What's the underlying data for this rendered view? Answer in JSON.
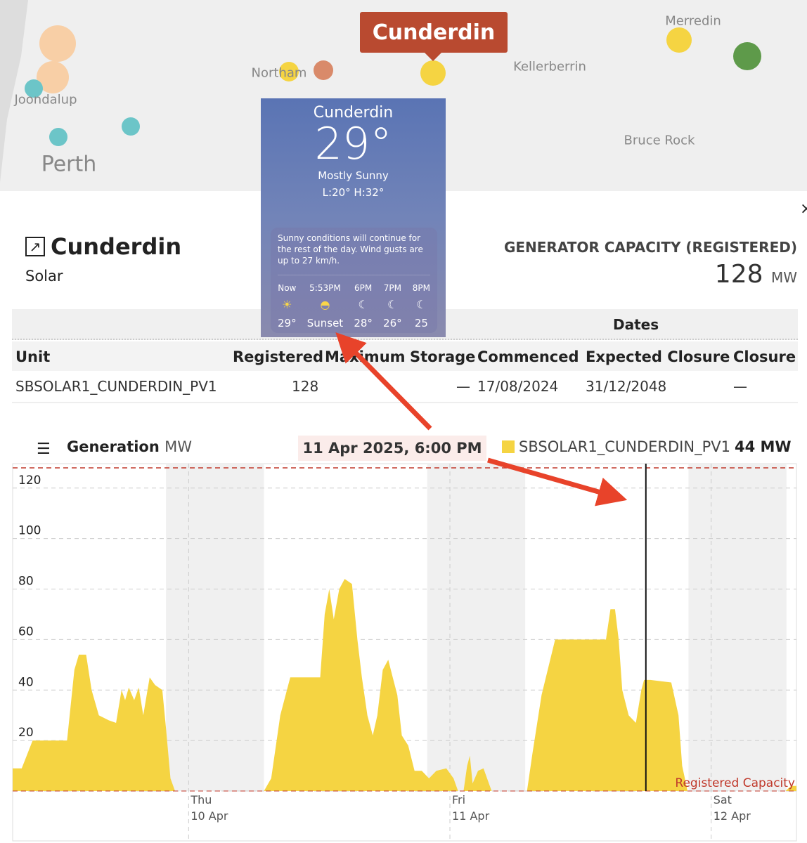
{
  "map": {
    "tooltip": "Cunderdin",
    "places": [
      {
        "name": "Merredin"
      },
      {
        "name": "Northam"
      },
      {
        "name": "Kellerberrin"
      },
      {
        "name": "Joondalup"
      },
      {
        "name": "Perth"
      },
      {
        "name": "Bruce Rock"
      }
    ],
    "marker_colors": {
      "solar": "#f5d442",
      "wind": "#5e9a4a",
      "gas": "#d98a6a",
      "battery": "#6cc5c8",
      "coal": "#f8cfa6"
    }
  },
  "weather": {
    "city": "Cunderdin",
    "temp": "29°",
    "condition": "Mostly Sunny",
    "range": "L:20° H:32°",
    "summary": "Sunny conditions will continue for the rest of the day. Wind gusts are up to 27 km/h.",
    "hours": [
      {
        "time": "Now",
        "icon": "sun-icon",
        "temp": "29°"
      },
      {
        "time": "5:53PM",
        "icon": "sunset-icon",
        "temp": "Sunset"
      },
      {
        "time": "6PM",
        "icon": "moon-stars-icon",
        "temp": "28°"
      },
      {
        "time": "7PM",
        "icon": "moon-stars-icon",
        "temp": "26°"
      },
      {
        "time": "8PM",
        "icon": "moon-stars-icon",
        "temp": "25"
      }
    ]
  },
  "facility": {
    "name": "Cunderdin",
    "fuel": "Solar",
    "capacity_label": "GENERATOR CAPACITY (REGISTERED)",
    "capacity_value": "128",
    "capacity_unit": "MW",
    "close": "×"
  },
  "table": {
    "group_header": "Dates",
    "columns": [
      "Unit",
      "Registered",
      "Maximum",
      "Storage",
      "Commenced",
      "Expected Closure",
      "Closure"
    ],
    "rows": [
      [
        "SBSOLAR1_CUNDERDIN_PV1",
        "128",
        "",
        "—",
        "17/08/2024",
        "31/12/2048",
        "—"
      ]
    ]
  },
  "chart_header": {
    "menu_icon": "hamburger-icon",
    "title": "Generation",
    "unit": "MW",
    "hover_date": "11 Apr 2025, 6:00 PM",
    "series_label": "SBSOLAR1_CUNDERDIN_PV1",
    "series_value": "44 MW"
  },
  "chart_data": {
    "type": "area",
    "ylim": [
      0,
      128
    ],
    "yticks": [
      "0",
      "20",
      "40",
      "60",
      "80",
      "100",
      "120"
    ],
    "xlim": [
      "2025-04-09 07:50",
      "2025-04-12 07:50"
    ],
    "xticks": [
      {
        "day": "Thu",
        "date": "10 Apr",
        "t": "2025-04-10 00:00"
      },
      {
        "day": "Fri",
        "date": "11 Apr",
        "t": "2025-04-11 00:00"
      },
      {
        "day": "Sat",
        "date": "12 Apr",
        "t": "2025-04-12 00:00"
      }
    ],
    "night_bands": [
      [
        "2025-04-09 21:55",
        "2025-04-10 06:55"
      ],
      [
        "2025-04-10 21:55",
        "2025-04-11 06:55"
      ],
      [
        "2025-04-11 21:55",
        "2025-04-12 06:55"
      ]
    ],
    "reference_line": {
      "label": "Registered Capacity",
      "value": 128,
      "color": "#c0392b"
    },
    "cursor": {
      "t": "2025-04-11 18:00",
      "value": 44
    },
    "grid": true,
    "series": [
      {
        "name": "SBSOLAR1_CUNDERDIN_PV1",
        "color": "#f5d442",
        "points": [
          [
            "2025-04-09 07:50",
            9
          ],
          [
            "2025-04-09 08:40",
            9
          ],
          [
            "2025-04-09 09:40",
            20
          ],
          [
            "2025-04-09 12:50",
            20
          ],
          [
            "2025-04-09 13:30",
            48
          ],
          [
            "2025-04-09 13:55",
            54
          ],
          [
            "2025-04-09 14:35",
            54
          ],
          [
            "2025-04-09 15:05",
            40
          ],
          [
            "2025-04-09 15:45",
            30
          ],
          [
            "2025-04-09 16:40",
            28
          ],
          [
            "2025-04-09 17:20",
            27
          ],
          [
            "2025-04-09 17:50",
            40
          ],
          [
            "2025-04-09 18:10",
            36
          ],
          [
            "2025-04-09 18:30",
            41
          ],
          [
            "2025-04-09 19:00",
            36
          ],
          [
            "2025-04-09 19:25",
            41
          ],
          [
            "2025-04-09 19:50",
            30
          ],
          [
            "2025-04-09 20:25",
            45
          ],
          [
            "2025-04-09 20:55",
            42
          ],
          [
            "2025-04-09 21:35",
            40
          ],
          [
            "2025-04-09 21:55",
            25
          ],
          [
            "2025-04-09 22:20",
            5
          ],
          [
            "2025-04-09 22:45",
            0
          ],
          [
            "2025-04-10 06:55",
            0
          ],
          [
            "2025-04-10 07:35",
            5
          ],
          [
            "2025-04-10 08:25",
            30
          ],
          [
            "2025-04-10 09:20",
            45
          ],
          [
            "2025-04-10 12:05",
            45
          ],
          [
            "2025-04-10 12:30",
            70
          ],
          [
            "2025-04-10 12:55",
            80
          ],
          [
            "2025-04-10 13:20",
            68
          ],
          [
            "2025-04-10 13:50",
            80
          ],
          [
            "2025-04-10 14:20",
            84
          ],
          [
            "2025-04-10 15:00",
            82
          ],
          [
            "2025-04-10 15:30",
            60
          ],
          [
            "2025-04-10 15:55",
            45
          ],
          [
            "2025-04-10 16:25",
            30
          ],
          [
            "2025-04-10 16:55",
            22
          ],
          [
            "2025-04-10 17:20",
            30
          ],
          [
            "2025-04-10 17:50",
            48
          ],
          [
            "2025-04-10 18:20",
            52
          ],
          [
            "2025-04-10 18:45",
            45
          ],
          [
            "2025-04-10 19:10",
            38
          ],
          [
            "2025-04-10 19:35",
            22
          ],
          [
            "2025-04-10 20:10",
            18
          ],
          [
            "2025-04-10 20:45",
            8
          ],
          [
            "2025-04-10 21:25",
            8
          ],
          [
            "2025-04-10 22:05",
            5
          ],
          [
            "2025-04-10 22:45",
            8
          ],
          [
            "2025-04-10 23:40",
            9
          ],
          [
            "2025-04-11 00:20",
            5
          ],
          [
            "2025-04-11 00:45",
            0
          ],
          [
            "2025-04-11 01:15",
            0
          ],
          [
            "2025-04-11 01:35",
            10
          ],
          [
            "2025-04-11 01:50",
            14
          ],
          [
            "2025-04-11 02:05",
            3
          ],
          [
            "2025-04-11 02:35",
            8
          ],
          [
            "2025-04-11 03:05",
            9
          ],
          [
            "2025-04-11 03:35",
            3
          ],
          [
            "2025-04-11 03:50",
            0
          ],
          [
            "2025-04-11 07:05",
            0
          ],
          [
            "2025-04-11 07:35",
            15
          ],
          [
            "2025-04-11 08:25",
            38
          ],
          [
            "2025-04-11 09:40",
            60
          ],
          [
            "2025-04-11 14:20",
            60
          ],
          [
            "2025-04-11 14:45",
            72
          ],
          [
            "2025-04-11 15:10",
            72
          ],
          [
            "2025-04-11 15:30",
            60
          ],
          [
            "2025-04-11 15:50",
            40
          ],
          [
            "2025-04-11 16:25",
            30
          ],
          [
            "2025-04-11 17:05",
            27
          ],
          [
            "2025-04-11 17:35",
            40
          ],
          [
            "2025-04-11 17:50",
            44
          ],
          [
            "2025-04-11 18:25",
            44
          ],
          [
            "2025-04-11 20:20",
            43
          ],
          [
            "2025-04-11 21:00",
            30
          ],
          [
            "2025-04-11 21:20",
            10
          ],
          [
            "2025-04-11 21:50",
            0
          ],
          [
            "2025-04-12 06:50",
            0
          ],
          [
            "2025-04-12 07:20",
            2
          ],
          [
            "2025-04-12 07:50",
            2
          ]
        ]
      }
    ]
  }
}
